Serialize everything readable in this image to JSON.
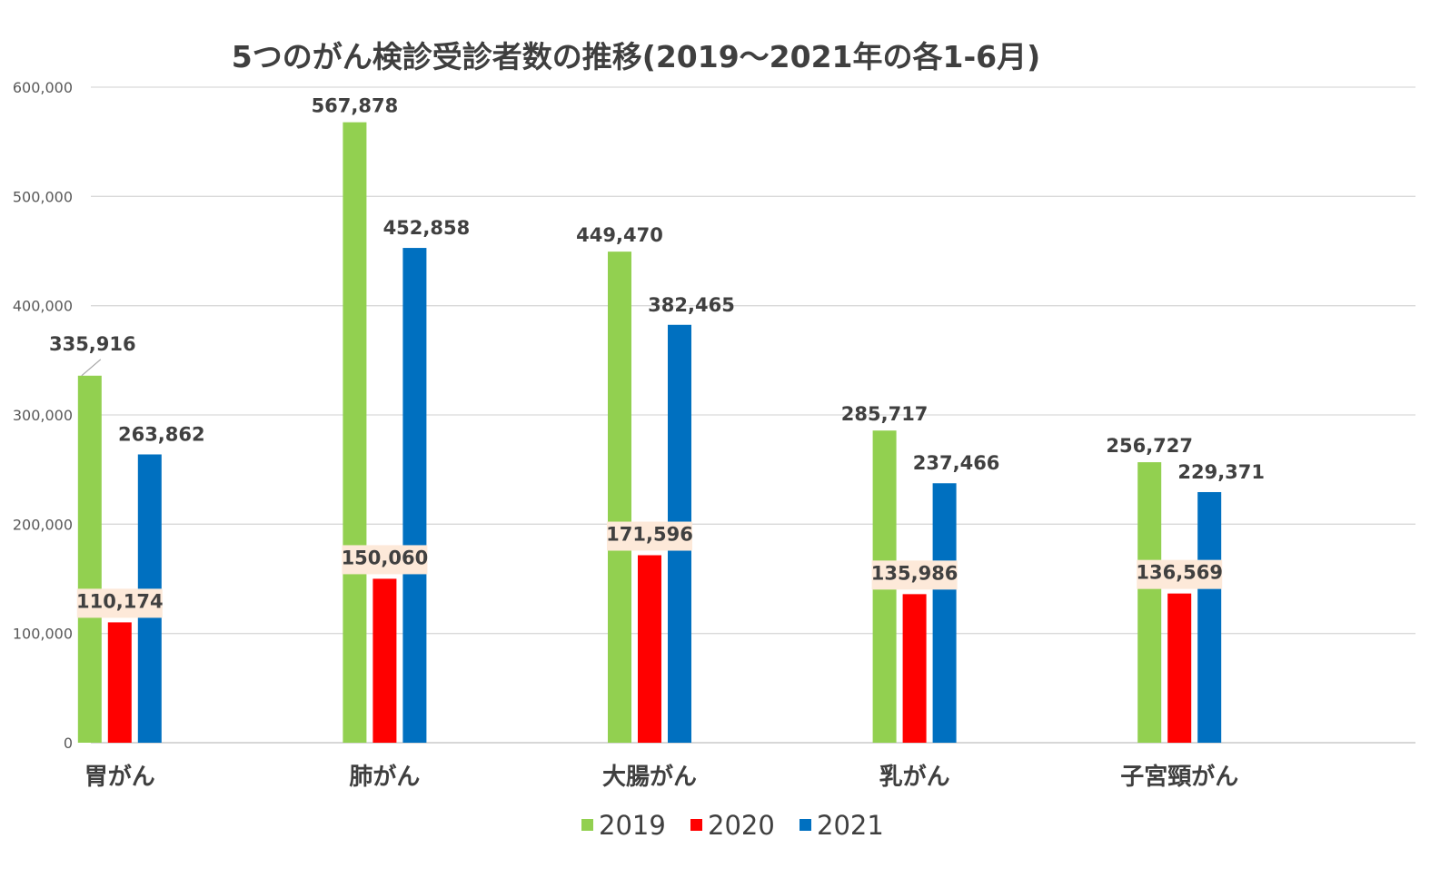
{
  "chart_data": {
    "type": "bar",
    "title": "5つのがん検診受診者数の推移(2019～2021年の各1-6月)",
    "categories": [
      "胃がん",
      "肺がん",
      "大腸がん",
      "乳がん",
      "子宮頸がん"
    ],
    "series": [
      {
        "name": "2019",
        "color": "#92d050",
        "values": [
          335916,
          567878,
          449470,
          285717,
          256727
        ],
        "labels": [
          "335,916",
          "567,878",
          "449,470",
          "285,717",
          "256,727"
        ]
      },
      {
        "name": "2020",
        "color": "#ff0000",
        "values": [
          110174,
          150060,
          171596,
          135986,
          136569
        ],
        "labels": [
          "110,174",
          "150,060",
          "171,596",
          "135,986",
          "136,569"
        ],
        "label_background": "#fde9d9"
      },
      {
        "name": "2021",
        "color": "#0070c0",
        "values": [
          263862,
          452858,
          382465,
          237466,
          229371
        ],
        "labels": [
          "263,862",
          "452,858",
          "382,465",
          "237,466",
          "229,371"
        ]
      }
    ],
    "ylim": [
      0,
      600000
    ],
    "yticks": [
      0,
      100000,
      200000,
      300000,
      400000,
      500000,
      600000
    ],
    "ytick_labels": [
      "0",
      "100,000",
      "200,000",
      "300,000",
      "400,000",
      "500,000",
      "600,000"
    ],
    "grid": true,
    "legend_position": "bottom"
  }
}
